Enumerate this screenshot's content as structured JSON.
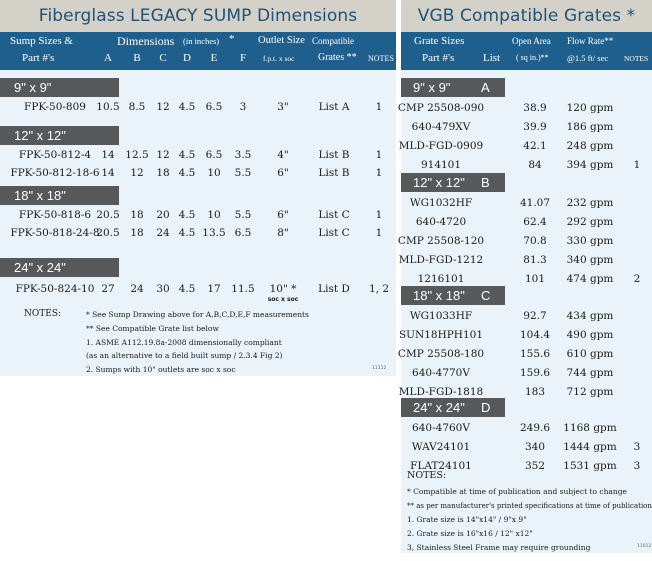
{
  "left": {
    "title": "Fiberglass LEGACY SUMP Dimensions",
    "header": {
      "sump_sizes": "Sump Sizes &",
      "part_nums": "Part #'s",
      "dimensions": "Dimensions",
      "in_inches": "(in inches)",
      "star": "*",
      "outlet_size": "Outlet Size",
      "fpt": "f.p.t. x soc",
      "compatible": "Compatible",
      "grates": "Grates **",
      "notes": "NOTES",
      "cols": [
        "A",
        "B",
        "C",
        "D",
        "E",
        "F"
      ]
    },
    "groups": [
      {
        "size": "9\" x 9\"",
        "rows": [
          {
            "part": "FPK-50-809",
            "dims": [
              "10.5",
              "8.5",
              "12",
              "4.5",
              "6.5",
              "3"
            ],
            "outlet": "3\"",
            "grates": "List  A",
            "note": "1"
          }
        ]
      },
      {
        "size": "12\" x 12\"",
        "rows": [
          {
            "part": "FPK-50-812-4",
            "dims": [
              "14",
              "12.5",
              "12",
              "4.5",
              "6.5",
              "3.5"
            ],
            "outlet": "4\"",
            "grates": "List B",
            "note": "1"
          },
          {
            "part": "FPK-50-812-18-6",
            "dims": [
              "14",
              "12",
              "18",
              "4.5",
              "10",
              "5.5"
            ],
            "outlet": "6\"",
            "grates": "List B",
            "note": "1"
          }
        ]
      },
      {
        "size": "18\" x 18\"",
        "rows": [
          {
            "part": "FPK-50-818-6",
            "dims": [
              "20.5",
              "18",
              "20",
              "4.5",
              "10",
              "5.5"
            ],
            "outlet": "6\"",
            "grates": "List C",
            "note": "1"
          },
          {
            "part": "FPK-50-818-24-8",
            "dims": [
              "20.5",
              "18",
              "24",
              "4.5",
              "13.5",
              "6.5"
            ],
            "outlet": "8\"",
            "grates": "List C",
            "note": "1"
          }
        ]
      },
      {
        "size": "24\" x 24\"",
        "rows": [
          {
            "part": "FPK-50-824-10",
            "dims": [
              "27",
              "24",
              "30",
              "4.5",
              "17",
              "11.5"
            ],
            "outlet": "10\" *",
            "outlet_sub": "soc x soc",
            "grates": "List D",
            "note": "1, 2"
          }
        ]
      }
    ],
    "notes_label": "NOTES:",
    "notes": [
      "* See Sump  Drawing above for A,B,C,D,E,F  measurements",
      "** See Compatible Grate list below",
      "1.  ASME A112.19.8a-2008 dimensionally compliant",
      "     (as an alternative to a field built sump / 2.3.4 Fig 2)",
      "2.  Sumps with 10\" outlets are  soc x soc"
    ],
    "code": "11112"
  },
  "right": {
    "title": "VGB Compatible Grates *",
    "header": {
      "grate_sizes": "Grate Sizes",
      "part_nums": "Part #'s",
      "list": "List",
      "open_area": "Open Area",
      "sq_in": "( sq in.)**",
      "flow_rate": "Flow Rate**",
      "at_speed": "@1.5 ft/ sec",
      "notes": "NOTES"
    },
    "groups": [
      {
        "size": "9\" x 9\"",
        "letter": "A",
        "rows": [
          {
            "part": "CMP 25508-090",
            "area": "38.9",
            "flow": "120 gpm",
            "note": ""
          },
          {
            "part": "640-479XV",
            "area": "39.9",
            "flow": "186 gpm",
            "note": ""
          },
          {
            "part": "MLD-FGD-0909",
            "area": "42.1",
            "flow": "248 gpm",
            "note": ""
          },
          {
            "part": "914101",
            "area": "84",
            "flow": "394 gpm",
            "note": "1"
          }
        ]
      },
      {
        "size": "12\" x 12\"",
        "letter": "B",
        "rows": [
          {
            "part": "WG1032HF",
            "area": "41.07",
            "flow": "232 gpm",
            "note": ""
          },
          {
            "part": "640-4720",
            "area": "62.4",
            "flow": "292 gpm",
            "note": ""
          },
          {
            "part": "CMP 25508-120",
            "area": "70.8",
            "flow": "330 gpm",
            "note": ""
          },
          {
            "part": "MLD-FGD-1212",
            "area": "81.3",
            "flow": "340 gpm",
            "note": ""
          },
          {
            "part": "1216101",
            "area": "101",
            "flow": "474 gpm",
            "note": "2"
          }
        ]
      },
      {
        "size": "18\" x 18\"",
        "letter": "C",
        "rows": [
          {
            "part": "WG1033HF",
            "area": "92.7",
            "flow": "434 gpm",
            "note": ""
          },
          {
            "part": "SUN18HPH101",
            "area": "104.4",
            "flow": "490 gpm",
            "note": ""
          },
          {
            "part": "CMP 25508-180",
            "area": "155.6",
            "flow": "610 gpm",
            "note": ""
          },
          {
            "part": "640-4770V",
            "area": "159.6",
            "flow": "744 gpm",
            "note": ""
          },
          {
            "part": "MLD-FGD-1818",
            "area": "183",
            "flow": "712 gpm",
            "note": ""
          }
        ]
      },
      {
        "size": "24\" x 24\"",
        "letter": "D",
        "rows": [
          {
            "part": "640-4760V",
            "area": "249.6",
            "flow": "1168 gpm",
            "note": ""
          },
          {
            "part": "WAV24101",
            "area": "340",
            "flow": "1444 gpm",
            "note": "3"
          },
          {
            "part": "FLAT24101",
            "area": "352",
            "flow": "1531 gpm",
            "note": "3"
          }
        ]
      }
    ],
    "notes_label": "NOTES:",
    "notes": [
      "* Compatible at time of publication and subject to change",
      "** as per manufacturer's printed specifications at time of publication",
      "1. Grate size is 14\"x14\" / 9\"x 9\"",
      "2. Grate size is 16\"x16 / 12\" x12\"",
      "3, Stainless Steel Frame may require grounding"
    ],
    "code": "11012"
  },
  "colors": {
    "title_bg": "#d3d1c8",
    "title_text": "#1f5278",
    "header_bg": "#1f5f8e",
    "body_bg": "#eaf3fa",
    "band_bg": "#57585a"
  }
}
